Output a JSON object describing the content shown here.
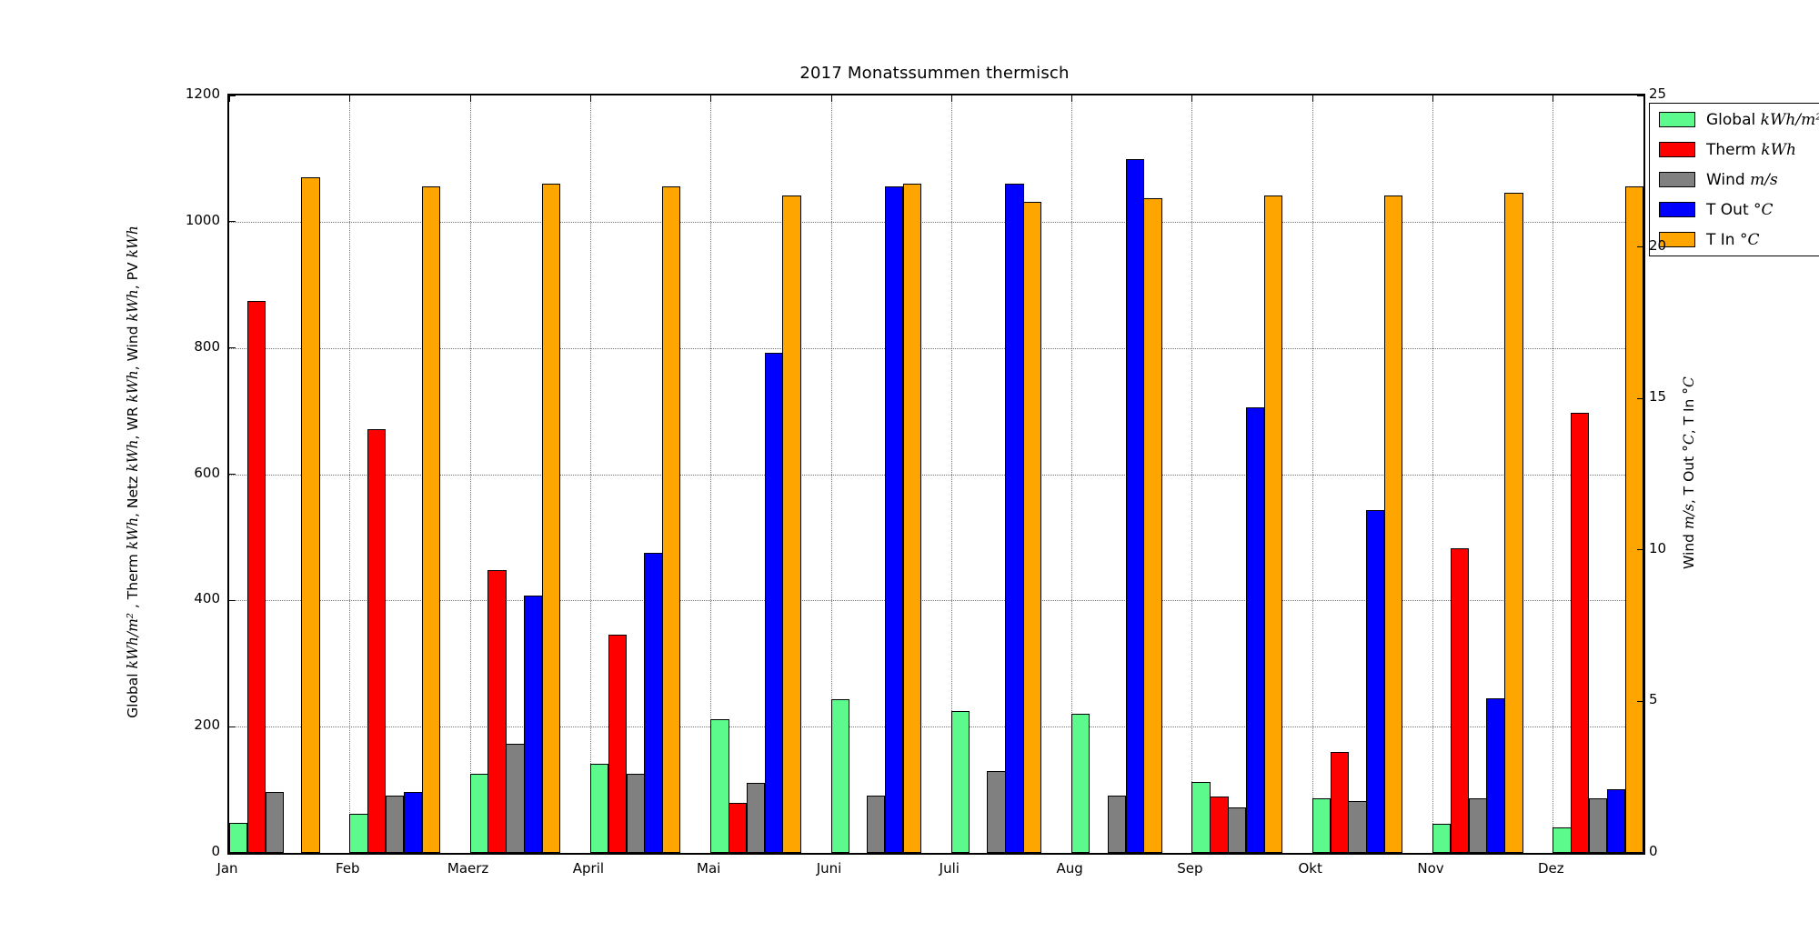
{
  "chart_data": {
    "type": "bar",
    "title": "2017 Monatssummen thermisch",
    "categories": [
      "Jan",
      "Feb",
      "Maerz",
      "April",
      "Mai",
      "Juni",
      "Juli",
      "Aug",
      "Sep",
      "Okt",
      "Nov",
      "Dez"
    ],
    "series": [
      {
        "name": "Global",
        "unit": "kWh/m²",
        "axis": "left",
        "color": "#5CF98C",
        "values": [
          47,
          62,
          126,
          141,
          212,
          243,
          225,
          220,
          112,
          86,
          46,
          40
        ]
      },
      {
        "name": "Therm",
        "unit": "kWh",
        "axis": "left",
        "color": "#FF0000",
        "values": [
          874,
          672,
          448,
          346,
          79,
          0,
          0,
          0,
          89,
          160,
          482,
          697
        ]
      },
      {
        "name": "Wind",
        "unit": "m/s",
        "axis": "right",
        "color": "#808080",
        "values": [
          2.0,
          1.9,
          3.6,
          2.6,
          2.3,
          1.9,
          2.7,
          1.9,
          1.5,
          1.7,
          1.8,
          1.8
        ]
      },
      {
        "name": "T Out",
        "unit": "°C",
        "axis": "right",
        "color": "#0000FF",
        "values": [
          0,
          2.0,
          8.5,
          9.9,
          16.5,
          22.0,
          22.1,
          22.9,
          14.7,
          11.3,
          5.1,
          2.1
        ]
      },
      {
        "name": "T In",
        "unit": "°C",
        "axis": "right",
        "color": "#FFA500",
        "values": [
          22.3,
          22.0,
          22.1,
          22.0,
          21.7,
          22.1,
          21.5,
          21.6,
          21.7,
          21.7,
          21.8,
          22.0
        ]
      }
    ],
    "ylim_left": [
      0,
      1200
    ],
    "ylim_right": [
      0,
      25
    ],
    "left_ticks": [
      0,
      200,
      400,
      600,
      800,
      1000,
      1200
    ],
    "right_ticks": [
      0,
      5,
      10,
      15,
      20,
      25
    ],
    "grid": true,
    "legend_position": "upper right, overlapping right axis, clipped at figure edge",
    "left_axis_label_segments": [
      {
        "t": "Global "
      },
      {
        "m": "kWh/m²"
      },
      {
        "t": " , Therm "
      },
      {
        "m": "kWh"
      },
      {
        "t": ", Netz "
      },
      {
        "m": "kWh"
      },
      {
        "t": ", WR "
      },
      {
        "m": "kWh"
      },
      {
        "t": ", Wind "
      },
      {
        "m": "kWh"
      },
      {
        "t": ", PV "
      },
      {
        "m": "kWh"
      }
    ],
    "right_axis_label_segments": [
      {
        "t": "Wind "
      },
      {
        "m": "m/s"
      },
      {
        "t": ", T Out "
      },
      {
        "m": "°C"
      },
      {
        "t": ", T In "
      },
      {
        "m": "°C"
      }
    ],
    "left_axis_label_text": "Global kWh/m² , Therm kWh, Netz kWh, WR kWh, Wind kWh, PV kWh",
    "right_axis_label_text": "Wind m/s, T Out °C, T In °C"
  }
}
